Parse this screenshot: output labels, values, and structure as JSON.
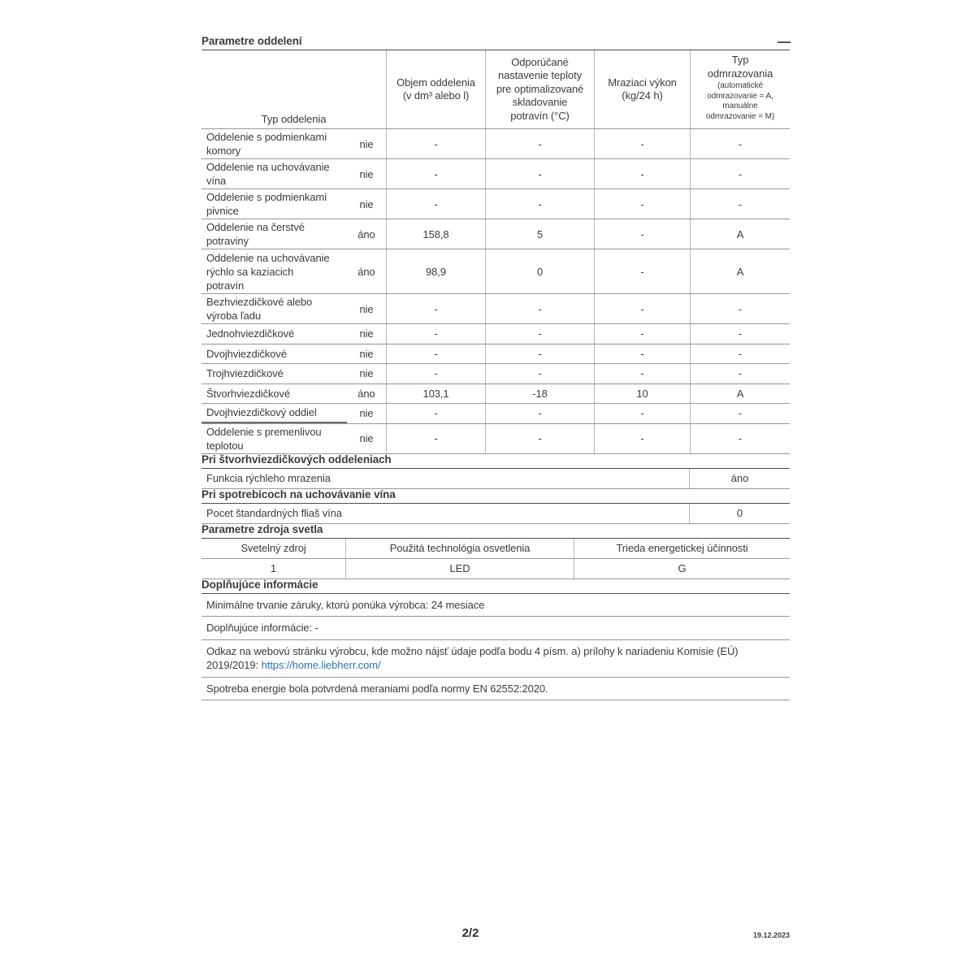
{
  "colors": {
    "link": "#2b74b8",
    "text": "#3c3c3b",
    "line_dark": "#4d4d4d",
    "line_gray": "#979797",
    "line_light": "#b7b7b7"
  },
  "compartment_table": {
    "title": "Parametre oddelení",
    "col_headers": {
      "type": "Typ oddelenia",
      "volume": "Objem oddelenia\n(v dm³ alebo l)",
      "temp": "Odporúčané\nnastavenie teploty\npre optimalizované\nskladovanie\npotravín (°C)",
      "freeze": "Mraziaci výkon\n(kg/24 h)",
      "defrost_main": "Typ\nodmrazovania",
      "defrost_sub": "(automatické\nodmrazovanie = A,\nmanuálne\nodmrazovanie = M)"
    },
    "rows": [
      {
        "label": "Oddelenie s podmienkami\nkomory",
        "present": "nie",
        "volume": "-",
        "temp": "-",
        "freeze": "-",
        "defrost": "-"
      },
      {
        "label": "Oddelenie na uchovávanie\nvína",
        "present": "nie",
        "volume": "-",
        "temp": "-",
        "freeze": "-",
        "defrost": "-"
      },
      {
        "label": "Oddelenie s podmienkami\npivnice",
        "present": "nie",
        "volume": "-",
        "temp": "-",
        "freeze": "-",
        "defrost": "-"
      },
      {
        "label": "Oddelenie na čerstvé\npotraviny",
        "present": "áno",
        "volume": "158,8",
        "temp": "5",
        "freeze": "-",
        "defrost": "A"
      },
      {
        "label": "Oddelenie na uchovávanie\nrýchlo sa kaziacich\npotravín",
        "present": "áno",
        "volume": "98,9",
        "temp": "0",
        "freeze": "-",
        "defrost": "A"
      },
      {
        "label": "Bezhviezdičkové alebo\nvýroba ľadu",
        "present": "nie",
        "volume": "-",
        "temp": "-",
        "freeze": "-",
        "defrost": "-"
      },
      {
        "label": "Jednohviezdičkové",
        "present": "nie",
        "volume": "-",
        "temp": "-",
        "freeze": "-",
        "defrost": "-"
      },
      {
        "label": "Dvojhviezdičkové",
        "present": "nie",
        "volume": "-",
        "temp": "-",
        "freeze": "-",
        "defrost": "-"
      },
      {
        "label": "Trojhviezdičkové",
        "present": "nie",
        "volume": "-",
        "temp": "-",
        "freeze": "-",
        "defrost": "-"
      },
      {
        "label": "Štvorhviezdičkové",
        "present": "áno",
        "volume": "103,1",
        "temp": "-18",
        "freeze": "10",
        "defrost": "A"
      },
      {
        "label": "Dvojhviezdičkový oddiel",
        "present": "nie",
        "volume": "-",
        "temp": "-",
        "freeze": "-",
        "defrost": "-"
      },
      {
        "label": "Oddelenie s premenlivou\nteplotou",
        "present": "nie",
        "volume": "-",
        "temp": "-",
        "freeze": "-",
        "defrost": "-"
      }
    ]
  },
  "four_star_section": {
    "title": "Pri štvorhviezdičkových oddeleniach",
    "row": {
      "label": "Funkcia rýchleho mrazenia",
      "value": "áno"
    }
  },
  "wine_section": {
    "title": "Pri spotrebicoch na uchovávanie vína",
    "row": {
      "label": "Pocet štandardných fliaš vína",
      "value": "0"
    }
  },
  "light_table": {
    "title": "Parametre zdroja svetla",
    "headers": [
      "Svetelný zdroj",
      "Použitá technológia osvetlenia",
      "Trieda energetickej účinnosti"
    ],
    "values": [
      "1",
      "LED",
      "G"
    ]
  },
  "additional_info": {
    "title": "Doplňujúce informácie",
    "rows": [
      {
        "text": "Minimálne trvanie záruky, ktorú ponúka výrobca: 24 mesiace"
      },
      {
        "text": "Doplňujúce informácie: -"
      },
      {
        "text_prefix": "Odkaz na webovú stránku výrobcu, kde možno nájsť údaje podľa bodu 4 písm. a) prílohy k nariadeniu Komisie (EÚ) 2019/2019: ",
        "link": "https://home.liebherr.com/"
      },
      {
        "text": "Spotreba energie bola potvrdená meraniami podľa normy EN 62552:2020."
      }
    ]
  },
  "footer": {
    "page": "2/2",
    "date": "19.12.2023"
  }
}
